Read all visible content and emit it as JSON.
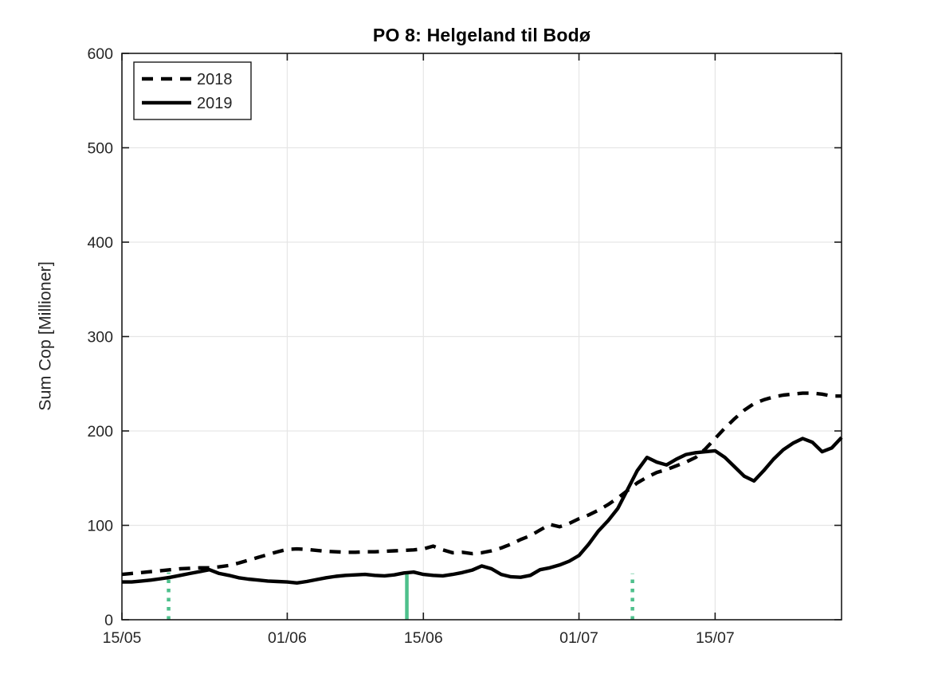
{
  "figure": {
    "background": "#ffffff"
  },
  "chart_data": {
    "type": "line",
    "title": "PO 8: Helgeland til Bodø",
    "xlabel": "",
    "ylabel": "Sum Cop [Millioner]",
    "ylim": [
      0,
      600
    ],
    "yticks": [
      0,
      100,
      200,
      300,
      400,
      500,
      600
    ],
    "x_day_range": [
      0,
      74
    ],
    "x_start_date": "15/05",
    "xtick_days": [
      0,
      17,
      31,
      47,
      61
    ],
    "xtick_labels": [
      "15/05",
      "01/06",
      "15/06",
      "01/07",
      "15/07"
    ],
    "grid": true,
    "legend_position": "top-left",
    "colors": {
      "series_line": "#000000",
      "event_marker_green": "#4ec08c",
      "grid_line": "#e6e6e6",
      "axis_frame": "#1a1a1a",
      "tick_label": "#262626"
    },
    "series": [
      {
        "name": "2018",
        "style": "dashed",
        "color": "#000000",
        "points": [
          [
            0,
            48
          ],
          [
            1,
            49
          ],
          [
            2,
            50
          ],
          [
            3,
            51
          ],
          [
            4,
            52
          ],
          [
            5,
            53
          ],
          [
            6,
            54
          ],
          [
            7,
            54.5
          ],
          [
            8,
            55
          ],
          [
            9,
            55
          ],
          [
            10,
            56
          ],
          [
            11,
            57.5
          ],
          [
            12,
            60
          ],
          [
            13,
            63
          ],
          [
            14,
            66
          ],
          [
            15,
            69
          ],
          [
            16,
            72
          ],
          [
            17,
            74.5
          ],
          [
            18,
            75
          ],
          [
            19,
            74.5
          ],
          [
            20,
            73.5
          ],
          [
            21,
            72.5
          ],
          [
            22,
            72
          ],
          [
            23,
            71.5
          ],
          [
            24,
            71.5
          ],
          [
            25,
            72
          ],
          [
            26,
            72
          ],
          [
            27,
            72.5
          ],
          [
            28,
            73
          ],
          [
            29,
            73.5
          ],
          [
            30,
            74
          ],
          [
            31,
            75
          ],
          [
            32,
            78
          ],
          [
            33,
            74
          ],
          [
            34,
            71
          ],
          [
            35,
            71.5
          ],
          [
            36,
            70
          ],
          [
            37,
            71
          ],
          [
            38,
            73
          ],
          [
            39,
            76
          ],
          [
            40,
            80
          ],
          [
            41,
            85
          ],
          [
            42,
            89
          ],
          [
            43,
            95
          ],
          [
            44,
            101
          ],
          [
            45,
            98.5
          ],
          [
            46,
            102
          ],
          [
            47,
            107
          ],
          [
            48,
            111
          ],
          [
            49,
            116
          ],
          [
            50,
            122
          ],
          [
            51,
            129
          ],
          [
            52,
            137
          ],
          [
            53,
            145
          ],
          [
            54,
            151
          ],
          [
            55,
            156
          ],
          [
            56,
            159
          ],
          [
            57,
            163
          ],
          [
            58,
            167
          ],
          [
            59,
            172
          ],
          [
            60,
            181
          ],
          [
            61,
            192
          ],
          [
            62,
            203
          ],
          [
            63,
            213
          ],
          [
            64,
            222
          ],
          [
            65,
            229
          ],
          [
            66,
            233
          ],
          [
            67,
            236
          ],
          [
            68,
            238
          ],
          [
            69,
            239
          ],
          [
            70,
            240
          ],
          [
            71,
            240
          ],
          [
            72,
            239
          ],
          [
            73,
            237
          ],
          [
            74,
            237
          ]
        ]
      },
      {
        "name": "2019",
        "style": "solid",
        "color": "#000000",
        "points": [
          [
            0,
            40
          ],
          [
            1,
            40
          ],
          [
            2,
            41
          ],
          [
            3,
            42
          ],
          [
            4,
            43.5
          ],
          [
            5,
            45
          ],
          [
            6,
            47
          ],
          [
            7,
            49
          ],
          [
            8,
            51
          ],
          [
            9,
            53
          ],
          [
            10,
            49
          ],
          [
            11,
            47
          ],
          [
            12,
            44.5
          ],
          [
            13,
            43
          ],
          [
            14,
            42
          ],
          [
            15,
            41
          ],
          [
            16,
            40.5
          ],
          [
            17,
            40
          ],
          [
            18,
            39
          ],
          [
            19,
            40.5
          ],
          [
            20,
            42.5
          ],
          [
            21,
            44.5
          ],
          [
            22,
            46
          ],
          [
            23,
            47
          ],
          [
            24,
            47.5
          ],
          [
            25,
            48
          ],
          [
            26,
            47
          ],
          [
            27,
            46.5
          ],
          [
            28,
            47.5
          ],
          [
            29,
            49.5
          ],
          [
            30,
            50.5
          ],
          [
            31,
            48
          ],
          [
            32,
            47
          ],
          [
            33,
            46.5
          ],
          [
            34,
            48
          ],
          [
            35,
            50
          ],
          [
            36,
            52.5
          ],
          [
            37,
            57
          ],
          [
            38,
            54
          ],
          [
            39,
            48
          ],
          [
            40,
            45.5
          ],
          [
            41,
            45
          ],
          [
            42,
            47
          ],
          [
            43,
            53
          ],
          [
            44,
            55
          ],
          [
            45,
            58
          ],
          [
            46,
            62
          ],
          [
            47,
            68
          ],
          [
            48,
            80
          ],
          [
            49,
            94
          ],
          [
            50,
            105
          ],
          [
            51,
            118
          ],
          [
            52,
            138
          ],
          [
            53,
            158
          ],
          [
            54,
            172
          ],
          [
            55,
            167
          ],
          [
            56,
            164
          ],
          [
            57,
            170
          ],
          [
            58,
            175
          ],
          [
            59,
            177
          ],
          [
            60,
            178
          ],
          [
            61,
            179
          ],
          [
            62,
            172
          ],
          [
            63,
            162
          ],
          [
            64,
            152
          ],
          [
            65,
            147
          ],
          [
            66,
            158
          ],
          [
            67,
            170
          ],
          [
            68,
            180
          ],
          [
            69,
            187
          ],
          [
            70,
            192
          ],
          [
            71,
            188
          ],
          [
            72,
            178
          ],
          [
            73,
            182
          ],
          [
            74,
            193
          ]
        ]
      }
    ],
    "event_markers": [
      {
        "day": 4.8,
        "value": 50,
        "style": "dotted"
      },
      {
        "day": 29.3,
        "value": 49,
        "style": "solid"
      },
      {
        "day": 52.5,
        "value": 49,
        "style": "dotted"
      }
    ]
  }
}
